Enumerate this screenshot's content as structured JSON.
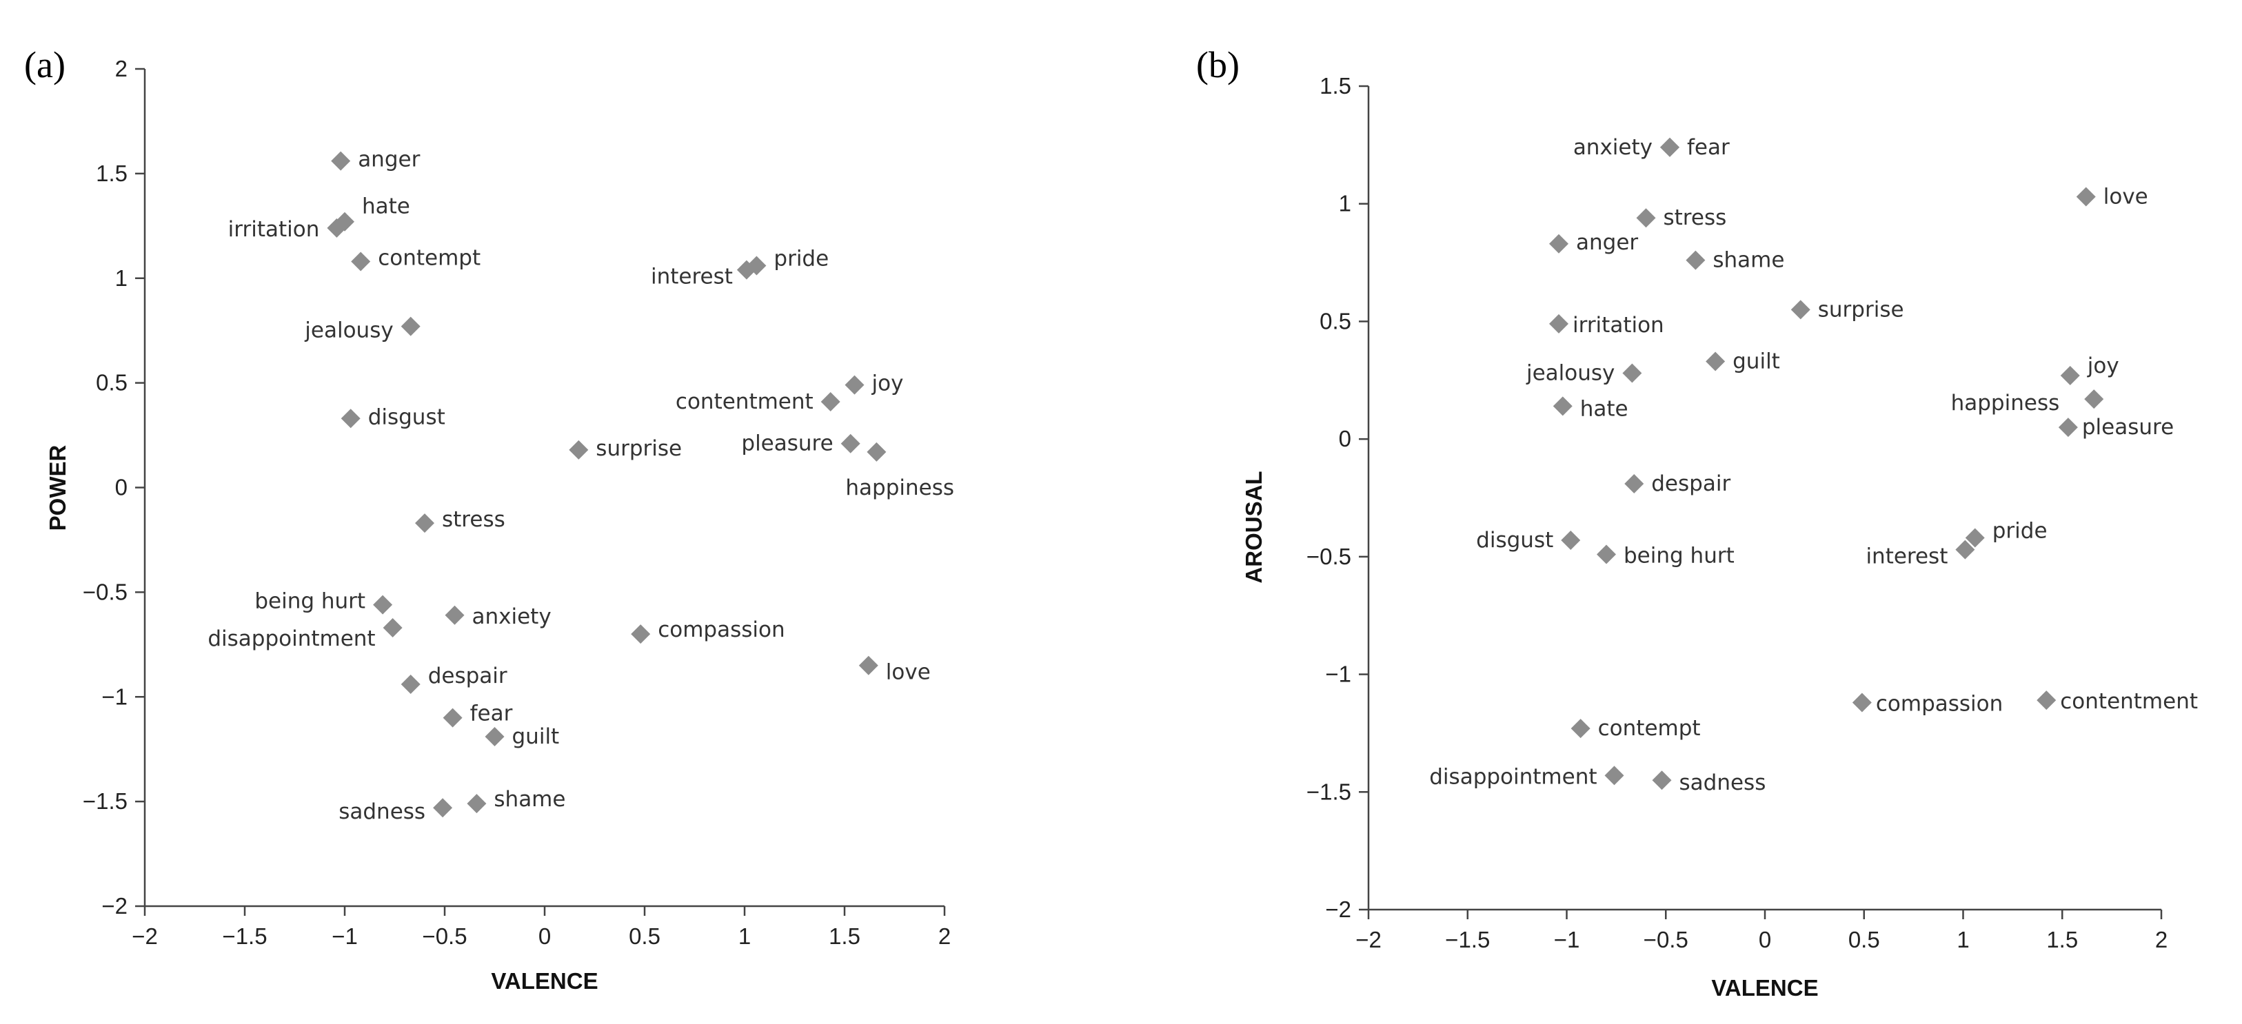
{
  "chart_data": [
    {
      "type": "scatter",
      "panel_label": "(a)",
      "xlabel": "VALENCE",
      "ylabel": "POWER",
      "xlim": [
        -2,
        2
      ],
      "ylim": [
        -2,
        2
      ],
      "xticks": [
        "−2",
        "−1.5",
        "−1",
        "−0.5",
        "0",
        "0.5",
        "1",
        "1.5",
        "2"
      ],
      "yticks": [
        "2",
        "1.5",
        "1",
        "0.5",
        "0",
        "−0.5",
        "−1",
        "−1.5",
        "−2"
      ],
      "grid": false,
      "marker_color": "#8c8c8c",
      "points": [
        {
          "label": "anger",
          "x": -1.02,
          "y": 1.56
        },
        {
          "label": "hate",
          "x": -1.0,
          "y": 1.27
        },
        {
          "label": "irritation",
          "x": -1.04,
          "y": 1.24
        },
        {
          "label": "contempt",
          "x": -0.92,
          "y": 1.08
        },
        {
          "label": "jealousy",
          "x": -0.67,
          "y": 0.77
        },
        {
          "label": "disgust",
          "x": -0.97,
          "y": 0.33
        },
        {
          "label": "interest",
          "x": 1.01,
          "y": 1.04
        },
        {
          "label": "pride",
          "x": 1.06,
          "y": 1.06
        },
        {
          "label": "contentment",
          "x": 1.43,
          "y": 0.41
        },
        {
          "label": "joy",
          "x": 1.55,
          "y": 0.49
        },
        {
          "label": "pleasure",
          "x": 1.53,
          "y": 0.21
        },
        {
          "label": "happiness",
          "x": 1.66,
          "y": 0.17
        },
        {
          "label": "surprise",
          "x": 0.17,
          "y": 0.18
        },
        {
          "label": "stress",
          "x": -0.6,
          "y": -0.17
        },
        {
          "label": "being hurt",
          "x": -0.81,
          "y": -0.56
        },
        {
          "label": "disappointment",
          "x": -0.76,
          "y": -0.67
        },
        {
          "label": "anxiety",
          "x": -0.45,
          "y": -0.61
        },
        {
          "label": "compassion",
          "x": 0.48,
          "y": -0.7
        },
        {
          "label": "love",
          "x": 1.62,
          "y": -0.85
        },
        {
          "label": "despair",
          "x": -0.67,
          "y": -0.94
        },
        {
          "label": "fear",
          "x": -0.46,
          "y": -1.1
        },
        {
          "label": "guilt",
          "x": -0.25,
          "y": -1.19
        },
        {
          "label": "sadness",
          "x": -0.51,
          "y": -1.53
        },
        {
          "label": "shame",
          "x": -0.34,
          "y": -1.51
        }
      ]
    },
    {
      "type": "scatter",
      "panel_label": "(b)",
      "xlabel": "VALENCE",
      "ylabel": "AROUSAL",
      "xlim": [
        -2,
        2
      ],
      "ylim": [
        -2,
        1.5
      ],
      "xticks": [
        "−2",
        "−1.5",
        "−1",
        "−0.5",
        "0",
        "0.5",
        "1",
        "1.5",
        "2"
      ],
      "yticks": [
        "1.5",
        "1",
        "0.5",
        "0",
        "−0.5",
        "−1",
        "−1.5",
        "−2"
      ],
      "grid": false,
      "marker_color": "#8c8c8c",
      "points": [
        {
          "label": "anxiety",
          "x": -0.48,
          "y": 1.24
        },
        {
          "label": "fear",
          "x": -0.48,
          "y": 1.24
        },
        {
          "label": "love",
          "x": 1.62,
          "y": 1.03
        },
        {
          "label": "stress",
          "x": -0.6,
          "y": 0.94
        },
        {
          "label": "anger",
          "x": -1.04,
          "y": 0.83
        },
        {
          "label": "shame",
          "x": -0.35,
          "y": 0.76
        },
        {
          "label": "surprise",
          "x": 0.18,
          "y": 0.55
        },
        {
          "label": "irritation",
          "x": -1.04,
          "y": 0.49
        },
        {
          "label": "jealousy",
          "x": -0.67,
          "y": 0.28
        },
        {
          "label": "guilt",
          "x": -0.25,
          "y": 0.33
        },
        {
          "label": "hate",
          "x": -1.02,
          "y": 0.14
        },
        {
          "label": "joy",
          "x": 1.54,
          "y": 0.27
        },
        {
          "label": "happiness",
          "x": 1.66,
          "y": 0.17
        },
        {
          "label": "pleasure",
          "x": 1.53,
          "y": 0.05
        },
        {
          "label": "despair",
          "x": -0.66,
          "y": -0.19
        },
        {
          "label": "disgust",
          "x": -0.98,
          "y": -0.43
        },
        {
          "label": "being hurt",
          "x": -0.8,
          "y": -0.49
        },
        {
          "label": "pride",
          "x": 1.06,
          "y": -0.42
        },
        {
          "label": "interest",
          "x": 1.01,
          "y": -0.47
        },
        {
          "label": "compassion",
          "x": 0.49,
          "y": -1.12
        },
        {
          "label": "contentment",
          "x": 1.42,
          "y": -1.11
        },
        {
          "label": "contempt",
          "x": -0.93,
          "y": -1.23
        },
        {
          "label": "disappointment",
          "x": -0.76,
          "y": -1.43
        },
        {
          "label": "sadness",
          "x": -0.52,
          "y": -1.45
        }
      ]
    }
  ]
}
